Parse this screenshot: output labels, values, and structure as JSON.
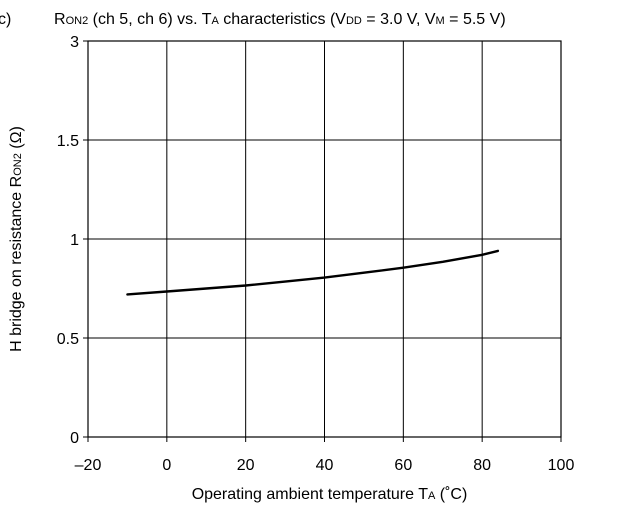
{
  "chart_data": {
    "type": "line",
    "panel_label": "c)",
    "title_parts": [
      {
        "t": "R"
      },
      {
        "t": "ON2",
        "small": true
      },
      {
        "t": " (ch 5, ch 6) vs. T"
      },
      {
        "t": "A",
        "small": true
      },
      {
        "t": " characteristics (V"
      },
      {
        "t": "DD",
        "small": true
      },
      {
        "t": " = 3.0 V, V"
      },
      {
        "t": "M",
        "small": true
      },
      {
        "t": " = 5.5 V)"
      }
    ],
    "xlabel_parts": [
      {
        "t": "Operating ambient temperature T"
      },
      {
        "t": "A",
        "small": true
      },
      {
        "t": " (˚C)"
      }
    ],
    "ylabel_parts": [
      {
        "t": "H bridge on resistance R"
      },
      {
        "t": "ON2",
        "small": true
      },
      {
        "t": " (Ω)"
      }
    ],
    "xlim": [
      -20,
      100
    ],
    "ylim": [
      0,
      3
    ],
    "x_ticks": [
      "–20",
      "0",
      "20",
      "40",
      "60",
      "80",
      "100"
    ],
    "x_tick_values": [
      -20,
      0,
      20,
      40,
      60,
      80,
      100
    ],
    "y_ticks": [
      "0",
      "0.5",
      "1",
      "1.5",
      "3"
    ],
    "y_gridlines_at_tick_positions": true,
    "grid": true,
    "series": [
      {
        "x": [
          -10,
          0,
          10,
          20,
          30,
          40,
          50,
          60,
          70,
          80,
          84
        ],
        "y": [
          0.72,
          0.735,
          0.75,
          0.765,
          0.785,
          0.805,
          0.83,
          0.855,
          0.885,
          0.92,
          0.94
        ]
      }
    ]
  }
}
